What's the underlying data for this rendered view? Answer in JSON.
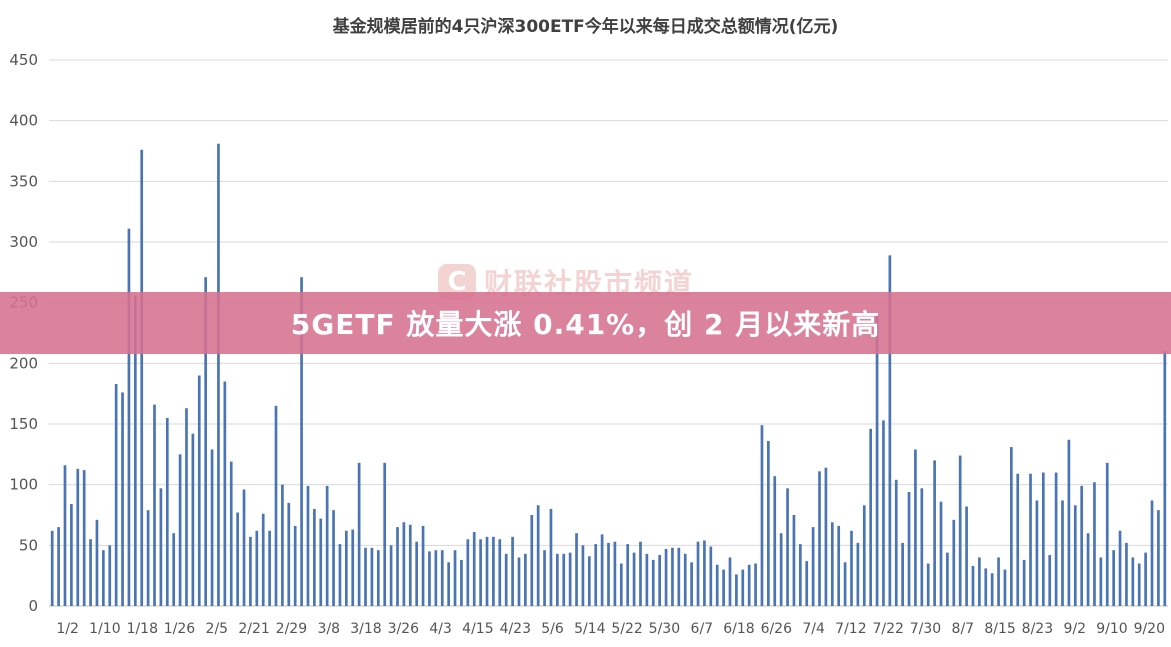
{
  "banner": {
    "text": "5GETF 放量大涨 0.41%，创 2 月以来新高"
  },
  "watermark": {
    "logo": "C",
    "text": "财联社股市频道"
  },
  "colors": {
    "bar": "#4a74b4",
    "grid": "#d9d9d9",
    "banner": "#d6718f"
  },
  "chart_data": {
    "type": "bar",
    "title": "基金规模居前的4只沪深300ETF今年以来每日成交总额情况(亿元)",
    "xlabel": "",
    "ylabel": "",
    "ylim": [
      0,
      450
    ],
    "yticks": [
      0,
      50,
      100,
      150,
      200,
      250,
      300,
      350,
      400,
      450
    ],
    "grid": "horizontal",
    "legend": "none",
    "x_tick_labels": [
      "1/2",
      "1/10",
      "1/18",
      "1/26",
      "2/5",
      "2/21",
      "2/29",
      "3/8",
      "3/18",
      "3/26",
      "4/3",
      "4/15",
      "4/23",
      "5/6",
      "5/14",
      "5/22",
      "5/30",
      "6/7",
      "6/18",
      "6/26",
      "7/4",
      "7/12",
      "7/22",
      "7/30",
      "8/7",
      "8/15",
      "8/23",
      "9/2",
      "9/10",
      "9/20"
    ],
    "values": [
      62,
      65,
      116,
      84,
      113,
      112,
      55,
      71,
      46,
      50,
      183,
      176,
      311,
      256,
      376,
      79,
      166,
      97,
      155,
      60,
      125,
      163,
      142,
      190,
      271,
      129,
      381,
      185,
      119,
      77,
      96,
      57,
      62,
      76,
      62,
      165,
      100,
      85,
      66,
      271,
      99,
      80,
      72,
      99,
      79,
      51,
      62,
      63,
      118,
      48,
      48,
      46,
      118,
      50,
      65,
      69,
      67,
      53,
      66,
      45,
      46,
      46,
      36,
      46,
      38,
      55,
      61,
      55,
      57,
      57,
      55,
      43,
      57,
      40,
      43,
      75,
      83,
      46,
      80,
      43,
      43,
      44,
      60,
      50,
      41,
      51,
      59,
      52,
      53,
      35,
      51,
      44,
      53,
      43,
      38,
      42,
      47,
      48,
      48,
      43,
      36,
      53,
      54,
      49,
      34,
      30,
      40,
      26,
      30,
      34,
      35,
      149,
      136,
      107,
      60,
      97,
      75,
      51,
      37,
      65,
      111,
      114,
      69,
      66,
      36,
      62,
      52,
      83,
      146,
      240,
      153,
      289,
      104,
      52,
      94,
      129,
      97,
      35,
      120,
      86,
      44,
      71,
      124,
      82,
      33,
      40,
      31,
      27,
      40,
      30,
      131,
      109,
      38,
      109,
      87,
      110,
      42,
      110,
      87,
      137,
      83,
      99,
      60,
      102,
      40,
      118,
      46,
      62,
      52,
      40,
      35,
      44,
      87,
      79,
      210
    ]
  }
}
